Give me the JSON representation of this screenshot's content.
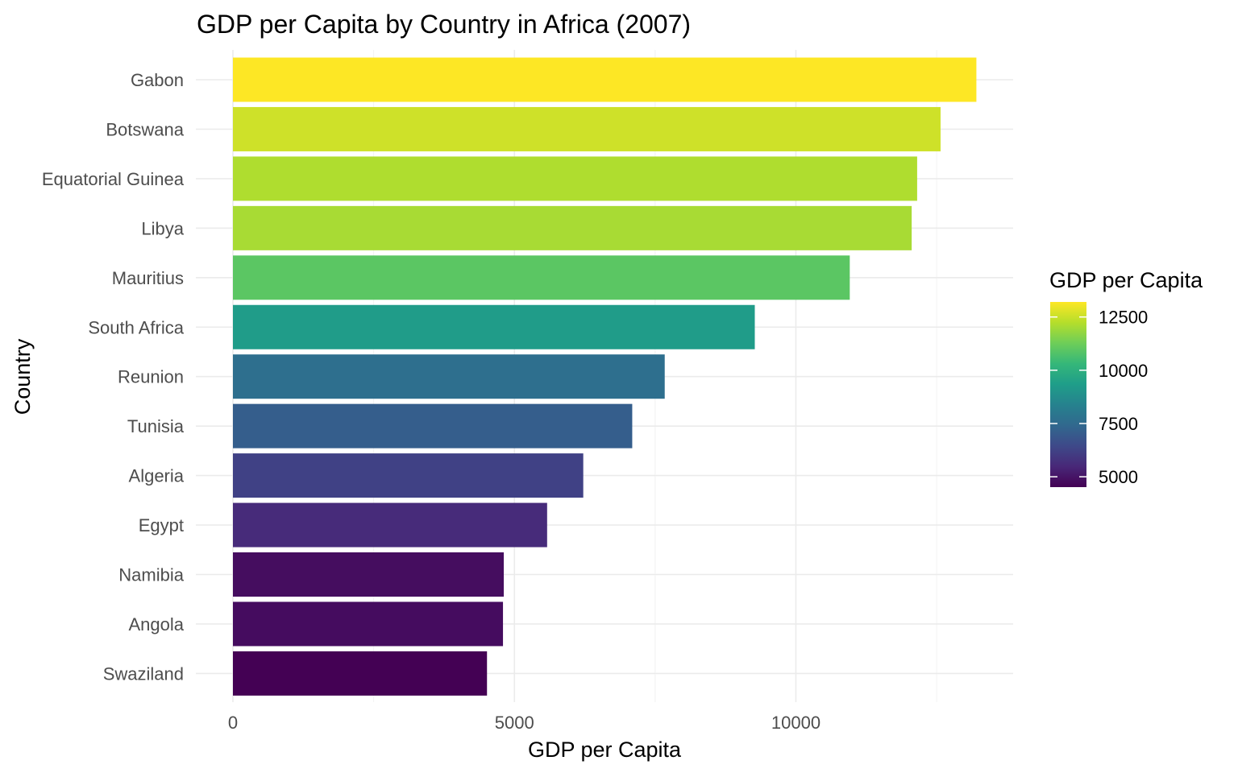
{
  "chart_data": {
    "type": "bar",
    "orientation": "horizontal",
    "title": "GDP per Capita by Country in Africa (2007)",
    "xlabel": "GDP per Capita",
    "ylabel": "Country",
    "xlim": [
      0,
      13900
    ],
    "x_ticks": [
      0,
      5000,
      10000
    ],
    "x_tick_labels": [
      "0",
      "5000",
      "10000"
    ],
    "grid": true,
    "categories": [
      "Gabon",
      "Botswana",
      "Equatorial Guinea",
      "Libya",
      "Mauritius",
      "South Africa",
      "Reunion",
      "Tunisia",
      "Algeria",
      "Egypt",
      "Namibia",
      "Angola",
      "Swaziland"
    ],
    "values": [
      13206,
      12570,
      12154,
      12057,
      10957,
      9270,
      7670,
      7093,
      6223,
      5581,
      4811,
      4797,
      4513
    ],
    "legend": {
      "title": "GDP per Capita",
      "placement": "right",
      "type": "colorbar",
      "colormap": "viridis",
      "range": [
        4513,
        13206
      ],
      "ticks": [
        5000,
        7500,
        10000,
        12500
      ],
      "tick_labels": [
        "5000",
        "7500",
        "10000",
        "12500"
      ]
    }
  }
}
